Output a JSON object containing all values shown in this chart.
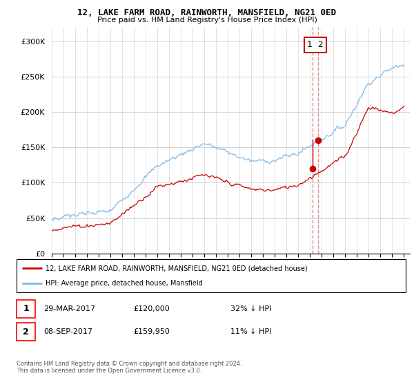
{
  "title": "12, LAKE FARM ROAD, RAINWORTH, MANSFIELD, NG21 0ED",
  "subtitle": "Price paid vs. HM Land Registry's House Price Index (HPI)",
  "legend_line1": "12, LAKE FARM ROAD, RAINWORTH, MANSFIELD, NG21 0ED (detached house)",
  "legend_line2": "HPI: Average price, detached house, Mansfield",
  "table_rows": [
    {
      "num": "1",
      "date": "29-MAR-2017",
      "price": "£120,000",
      "hpi": "32% ↓ HPI"
    },
    {
      "num": "2",
      "date": "08-SEP-2017",
      "price": "£159,950",
      "hpi": "11% ↓ HPI"
    }
  ],
  "footnote1": "Contains HM Land Registry data © Crown copyright and database right 2024.",
  "footnote2": "This data is licensed under the Open Government Licence v3.0.",
  "hpi_color": "#7ab8e8",
  "price_color": "#cc0000",
  "dashed_line_color": "#e08080",
  "background_color": "#ffffff",
  "ylim": [
    0,
    320000
  ],
  "yticks": [
    0,
    50000,
    100000,
    150000,
    200000,
    250000,
    300000
  ],
  "sale1_year": 2017.24,
  "sale1_price": 120000,
  "sale2_year": 2017.69,
  "sale2_price": 159950
}
